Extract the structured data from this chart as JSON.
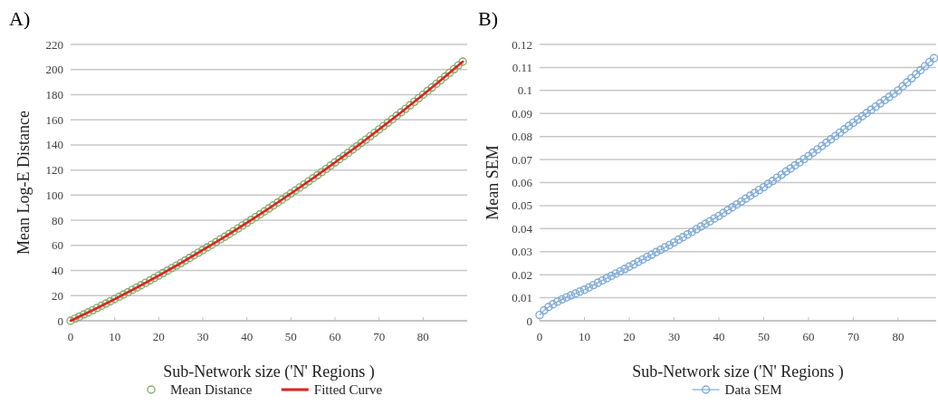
{
  "chart_data": [
    {
      "type": "scatter",
      "title": "A)",
      "xlabel": "Sub-Network size ('N' Regions )",
      "ylabel": "Mean Log-E Distance",
      "xlim": [
        0,
        90
      ],
      "ylim": [
        0,
        220
      ],
      "xticks": [
        0,
        10,
        20,
        30,
        40,
        50,
        60,
        70,
        80
      ],
      "yticks": [
        0,
        20,
        40,
        60,
        80,
        100,
        120,
        140,
        160,
        180,
        200,
        220
      ],
      "grid": "y",
      "legend": "bottom",
      "marker": "circle",
      "series": [
        {
          "name": "Mean Distance",
          "color": "#8aaa6e",
          "x": [
            0,
            1,
            2,
            3,
            4,
            5,
            6,
            7,
            8,
            9,
            10,
            11,
            12,
            13,
            14,
            15,
            16,
            17,
            18,
            19,
            20,
            21,
            22,
            23,
            24,
            25,
            26,
            27,
            28,
            29,
            30,
            31,
            32,
            33,
            34,
            35,
            36,
            37,
            38,
            39,
            40,
            41,
            42,
            43,
            44,
            45,
            46,
            47,
            48,
            49,
            50,
            51,
            52,
            53,
            54,
            55,
            56,
            57,
            58,
            59,
            60,
            61,
            62,
            63,
            64,
            65,
            66,
            67,
            68,
            69,
            70,
            71,
            72,
            73,
            74,
            75,
            76,
            77,
            78,
            79,
            80,
            81,
            82,
            83,
            84,
            85,
            86,
            87,
            88,
            89
          ],
          "values": [
            0,
            1.7,
            3.3,
            5.0,
            6.7,
            8.4,
            10.2,
            11.9,
            13.7,
            15.5,
            17.3,
            19.1,
            20.9,
            22.7,
            24.6,
            26.4,
            28.3,
            30.2,
            32.1,
            34.1,
            36.0,
            38.0,
            39.9,
            41.9,
            43.9,
            45.9,
            48.0,
            50.0,
            52.1,
            54.2,
            56.3,
            58.4,
            60.5,
            62.6,
            64.8,
            66.9,
            69.1,
            71.3,
            73.5,
            75.8,
            78.0,
            80.3,
            82.5,
            84.8,
            87.1,
            89.4,
            91.8,
            94.1,
            96.5,
            98.9,
            101.3,
            103.7,
            106.1,
            108.5,
            111.0,
            113.4,
            115.9,
            118.4,
            120.9,
            123.5,
            126.0,
            128.6,
            131.1,
            133.7,
            136.3,
            138.9,
            141.6,
            144.2,
            146.9,
            149.6,
            152.3,
            155.0,
            157.7,
            160.4,
            163.2,
            165.9,
            168.7,
            171.5,
            174.3,
            177.2,
            180.0,
            182.9,
            185.7,
            188.6,
            191.5,
            194.4,
            197.4,
            200.3,
            203.3,
            206.3
          ]
        },
        {
          "name": "Fitted Curve",
          "type": "line",
          "marker": "none",
          "color": "#e0201b",
          "x": [
            0,
            5,
            10,
            15,
            20,
            25,
            30,
            35,
            40,
            45,
            50,
            55,
            60,
            65,
            70,
            75,
            80,
            85,
            89
          ],
          "values": [
            0,
            8.4,
            17.3,
            26.4,
            36.0,
            45.9,
            56.3,
            66.9,
            78.0,
            89.4,
            101.3,
            113.4,
            126.0,
            138.9,
            152.3,
            165.9,
            180.0,
            194.4,
            206.3
          ]
        }
      ]
    },
    {
      "type": "line",
      "title": "B)",
      "xlabel": "Sub-Network size ('N' Regions )",
      "ylabel": "Mean SEM",
      "xlim": [
        0,
        88.5
      ],
      "ylim": [
        0,
        0.12
      ],
      "xticks": [
        0,
        10,
        20,
        30,
        40,
        50,
        60,
        70,
        80
      ],
      "yticks": [
        0,
        0.01,
        0.02,
        0.03,
        0.04,
        0.05,
        0.06,
        0.07,
        0.08,
        0.09,
        0.1,
        0.11,
        0.12
      ],
      "grid": "y",
      "legend": "bottom",
      "marker": "circle",
      "series": [
        {
          "name": "Data SEM",
          "color": "#7eaad6",
          "x": [
            0,
            1,
            2,
            3,
            4,
            5,
            6,
            7,
            8,
            9,
            10,
            11,
            12,
            13,
            14,
            15,
            16,
            17,
            18,
            19,
            20,
            21,
            22,
            23,
            24,
            25,
            26,
            27,
            28,
            29,
            30,
            31,
            32,
            33,
            34,
            35,
            36,
            37,
            38,
            39,
            40,
            41,
            42,
            43,
            44,
            45,
            46,
            47,
            48,
            49,
            50,
            51,
            52,
            53,
            54,
            55,
            56,
            57,
            58,
            59,
            60,
            61,
            62,
            63,
            64,
            65,
            66,
            67,
            68,
            69,
            70,
            71,
            72,
            73,
            74,
            75,
            76,
            77,
            78,
            79,
            80,
            81,
            82,
            83,
            84,
            85,
            86,
            87,
            88
          ],
          "values": [
            0.0025,
            0.0045,
            0.006,
            0.0072,
            0.0083,
            0.0093,
            0.0102,
            0.011,
            0.0118,
            0.0127,
            0.0135,
            0.0145,
            0.0155,
            0.0165,
            0.0175,
            0.0185,
            0.0195,
            0.0205,
            0.0215,
            0.0225,
            0.0235,
            0.0245,
            0.0256,
            0.0266,
            0.0277,
            0.0287,
            0.0298,
            0.0308,
            0.0319,
            0.0329,
            0.034,
            0.0352,
            0.0363,
            0.0375,
            0.0386,
            0.0398,
            0.0409,
            0.0421,
            0.0432,
            0.0444,
            0.0455,
            0.0468,
            0.048,
            0.0493,
            0.0505,
            0.0518,
            0.053,
            0.0543,
            0.0555,
            0.0568,
            0.058,
            0.0594,
            0.0607,
            0.0621,
            0.0634,
            0.0648,
            0.0661,
            0.0675,
            0.0688,
            0.0702,
            0.0715,
            0.073,
            0.0744,
            0.0759,
            0.0773,
            0.0788,
            0.0802,
            0.0817,
            0.0831,
            0.0846,
            0.086,
            0.0874,
            0.0888,
            0.0902,
            0.0916,
            0.093,
            0.0944,
            0.0958,
            0.0972,
            0.0986,
            0.1,
            0.1018,
            0.1035,
            0.1053,
            0.107,
            0.1088,
            0.1105,
            0.1123,
            0.114
          ]
        }
      ]
    }
  ]
}
